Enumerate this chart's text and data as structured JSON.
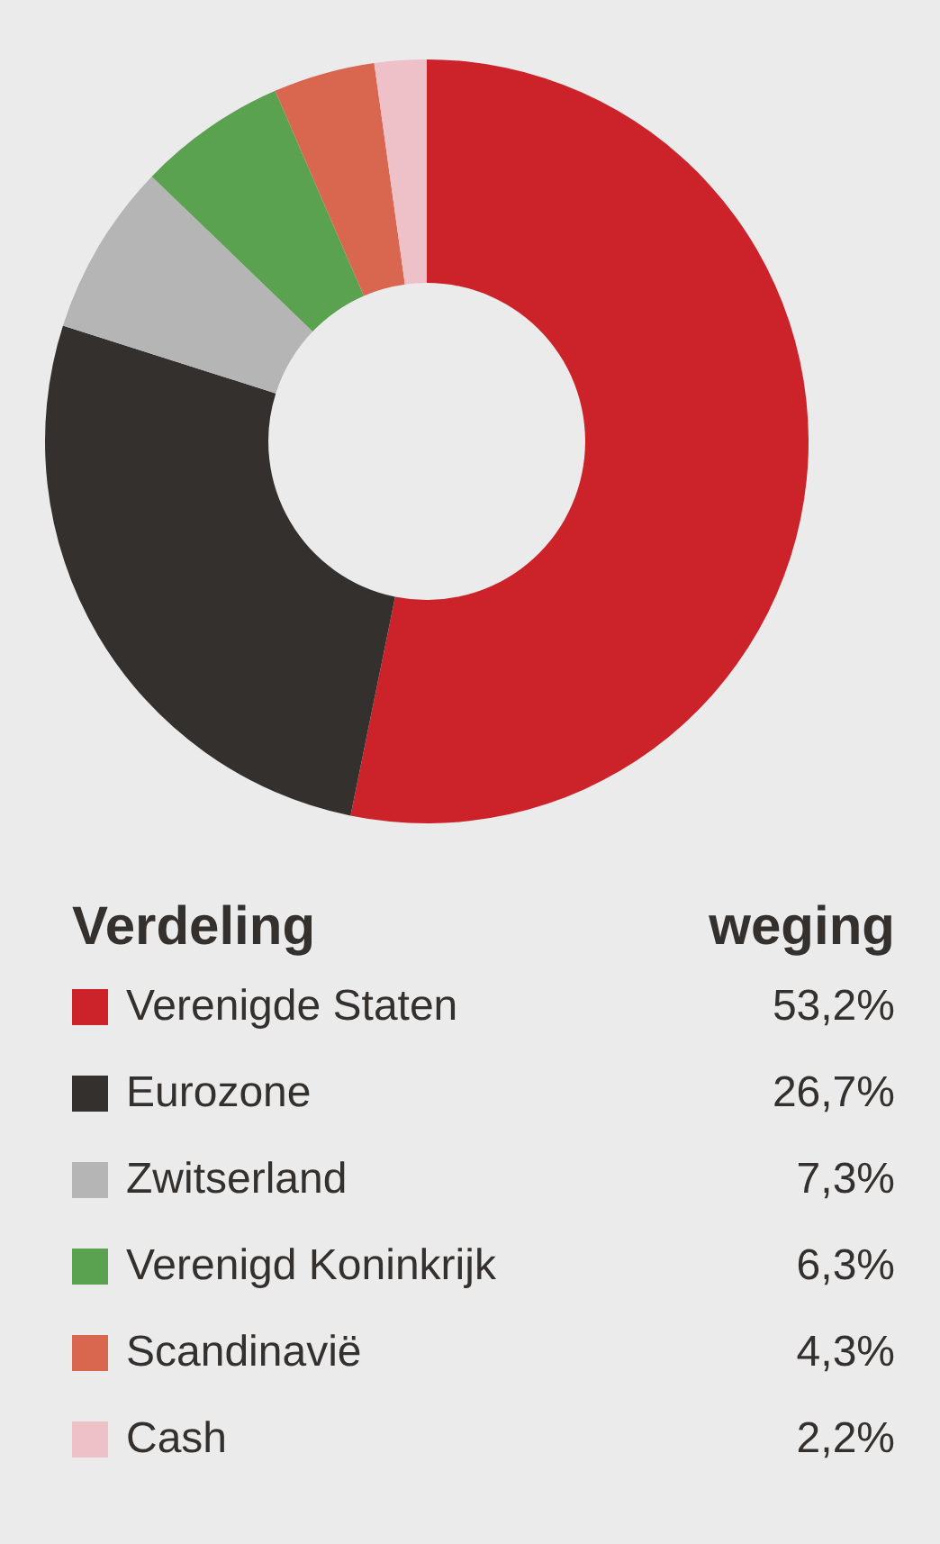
{
  "chart_data": {
    "type": "donut",
    "legend_title": "Verdeling",
    "annotations": [
      "weging"
    ],
    "categories": [
      "Verenigde Staten",
      "Eurozone",
      "Zwitserland",
      "Verenigd Koninkrijk",
      "Scandinavië",
      "Cash"
    ],
    "values": [
      53.2,
      26.7,
      7.3,
      6.3,
      4.3,
      2.2
    ],
    "value_labels": [
      "53,2%",
      "26,7%",
      "7,3%",
      "6,3%",
      "4,3%",
      "2,2%"
    ],
    "colors": [
      "#cc2229",
      "#33302d",
      "#b5b5b5",
      "#5aa24f",
      "#d9674f",
      "#eec0c8"
    ],
    "legend": "bottom"
  }
}
